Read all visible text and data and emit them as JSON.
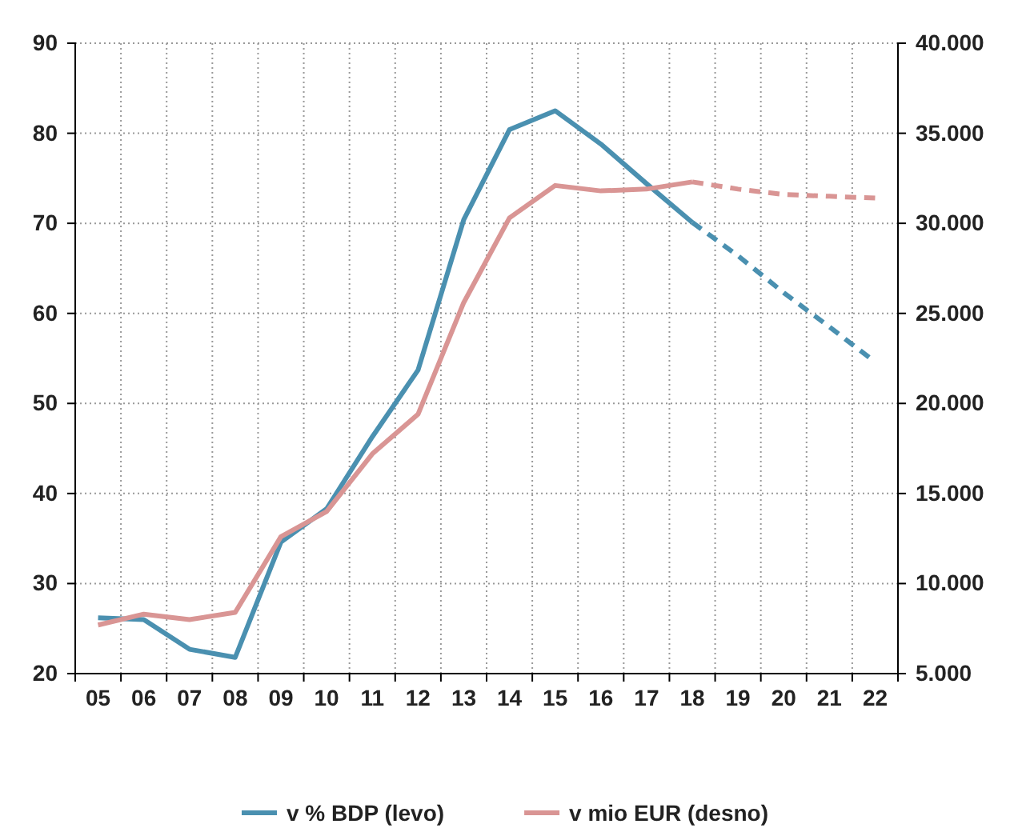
{
  "chart_data": {
    "type": "line",
    "categories": [
      "05",
      "06",
      "07",
      "08",
      "09",
      "10",
      "11",
      "12",
      "13",
      "14",
      "15",
      "16",
      "17",
      "18",
      "19",
      "20",
      "21",
      "22"
    ],
    "series": [
      {
        "name": "v % BDP (levo)",
        "color": "#4a90b0",
        "line_style": "solid",
        "values": [
          26.2,
          26.0,
          22.7,
          21.8,
          34.6,
          38.3,
          46.3,
          53.7,
          70.4,
          80.4,
          82.5,
          78.8,
          74.4,
          70.1,
          null,
          null,
          null,
          null
        ]
      },
      {
        "color": "#4a90b0",
        "line_style": "dashed",
        "values": [
          null,
          null,
          null,
          null,
          null,
          null,
          null,
          null,
          null,
          null,
          null,
          null,
          null,
          70.1,
          66.4,
          62.3,
          58.5,
          54.6
        ]
      },
      {
        "name": "v mio EUR (desno)",
        "color": "#d99594",
        "axis": "y2",
        "line_style": "solid",
        "values": [
          7700,
          8300,
          8000,
          8400,
          12600,
          14000,
          17200,
          19400,
          25600,
          30300,
          32100,
          31800,
          31900,
          32300,
          null,
          null,
          null,
          null
        ]
      },
      {
        "color": "#d99594",
        "axis": "y2",
        "line_style": "dashed",
        "values": [
          null,
          null,
          null,
          null,
          null,
          null,
          null,
          null,
          null,
          null,
          null,
          null,
          null,
          32300,
          31900,
          31600,
          31500,
          31400
        ]
      }
    ],
    "ylim": [
      20,
      90
    ],
    "yticks": [
      20,
      30,
      40,
      50,
      60,
      70,
      80,
      90
    ],
    "y2lim": [
      5000,
      40000
    ],
    "y2ticks": [
      {
        "value": 5000,
        "label": "5.000"
      },
      {
        "value": 10000,
        "label": "10.000"
      },
      {
        "value": 15000,
        "label": "15.000"
      },
      {
        "value": 20000,
        "label": "20.000"
      },
      {
        "value": 25000,
        "label": "25.000"
      },
      {
        "value": 30000,
        "label": "30.000"
      },
      {
        "value": 35000,
        "label": "35.000"
      },
      {
        "value": 40000,
        "label": "40.000"
      }
    ],
    "grid": true,
    "legend": "bottom",
    "marker": "none"
  }
}
